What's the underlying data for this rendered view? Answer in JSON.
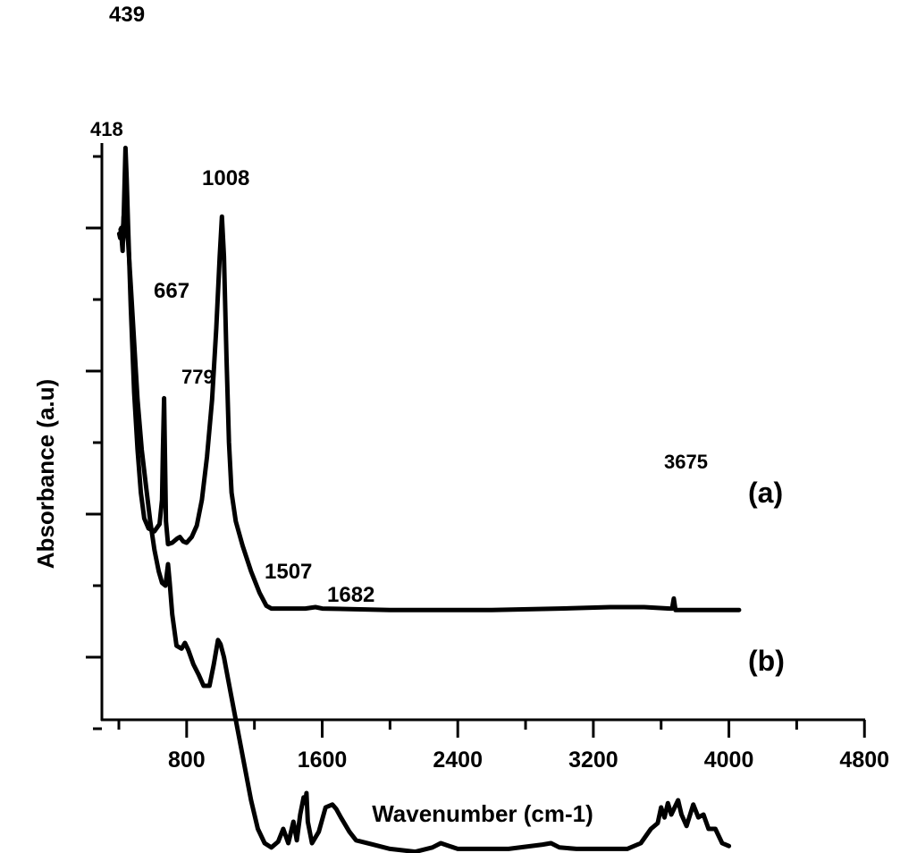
{
  "chart_data": {
    "type": "line",
    "title": "",
    "xlabel": "Wavenumber (cm-1)",
    "ylabel": "Absorbance (a.u)",
    "xlim": [
      300,
      4800
    ],
    "ylim": [
      -0.44,
      3.6
    ],
    "x_ticks": [
      800,
      1600,
      2400,
      3200,
      4000,
      4800
    ],
    "x_minor_ticks": [
      400,
      1200,
      2000,
      2800,
      3600,
      4400
    ],
    "y_ticks_labeled": false,
    "grid": false,
    "legend": "inline labels at right end of curves",
    "series": [
      {
        "name": "(a)",
        "points": [
          [
            410,
            2.99
          ],
          [
            418,
            2.94
          ],
          [
            428,
            3.05
          ],
          [
            439,
            3.56
          ],
          [
            446,
            3.35
          ],
          [
            455,
            3.0
          ],
          [
            470,
            2.45
          ],
          [
            490,
            1.85
          ],
          [
            510,
            1.45
          ],
          [
            530,
            1.15
          ],
          [
            550,
            0.97
          ],
          [
            575,
            0.9
          ],
          [
            610,
            0.88
          ],
          [
            640,
            0.93
          ],
          [
            655,
            1.1
          ],
          [
            660,
            1.45
          ],
          [
            667,
            1.81
          ],
          [
            672,
            1.4
          ],
          [
            678,
            0.95
          ],
          [
            690,
            0.79
          ],
          [
            715,
            0.8
          ],
          [
            745,
            0.83
          ],
          [
            760,
            0.84
          ],
          [
            779,
            0.81
          ],
          [
            800,
            0.8
          ],
          [
            830,
            0.84
          ],
          [
            860,
            0.92
          ],
          [
            890,
            1.1
          ],
          [
            920,
            1.4
          ],
          [
            950,
            1.8
          ],
          [
            975,
            2.3
          ],
          [
            995,
            2.8
          ],
          [
            1008,
            3.08
          ],
          [
            1020,
            2.8
          ],
          [
            1035,
            2.1
          ],
          [
            1050,
            1.5
          ],
          [
            1065,
            1.15
          ],
          [
            1090,
            0.95
          ],
          [
            1130,
            0.78
          ],
          [
            1180,
            0.6
          ],
          [
            1230,
            0.45
          ],
          [
            1270,
            0.36
          ],
          [
            1300,
            0.34
          ],
          [
            1500,
            0.34
          ],
          [
            1560,
            0.35
          ],
          [
            1600,
            0.34
          ],
          [
            2000,
            0.33
          ],
          [
            2600,
            0.33
          ],
          [
            3000,
            0.34
          ],
          [
            3300,
            0.35
          ],
          [
            3500,
            0.35
          ],
          [
            3650,
            0.34
          ],
          [
            3665,
            0.34
          ],
          [
            3675,
            0.41
          ],
          [
            3685,
            0.33
          ],
          [
            3800,
            0.33
          ],
          [
            4060,
            0.33
          ]
        ]
      },
      {
        "name": "(b)",
        "points": [
          [
            402,
            2.96
          ],
          [
            408,
            2.93
          ],
          [
            414,
            3.0
          ],
          [
            418,
            2.9
          ],
          [
            422,
            2.84
          ],
          [
            428,
            3.08
          ],
          [
            434,
            2.97
          ],
          [
            442,
            3.01
          ],
          [
            455,
            2.9
          ],
          [
            470,
            2.6
          ],
          [
            490,
            2.2
          ],
          [
            510,
            1.8
          ],
          [
            535,
            1.45
          ],
          [
            560,
            1.2
          ],
          [
            585,
            0.95
          ],
          [
            610,
            0.75
          ],
          [
            635,
            0.6
          ],
          [
            655,
            0.52
          ],
          [
            675,
            0.5
          ],
          [
            690,
            0.65
          ],
          [
            700,
            0.52
          ],
          [
            715,
            0.3
          ],
          [
            740,
            0.08
          ],
          [
            770,
            0.06
          ],
          [
            790,
            0.1
          ],
          [
            810,
            0.05
          ],
          [
            840,
            -0.05
          ],
          [
            870,
            -0.12
          ],
          [
            900,
            -0.2
          ],
          [
            935,
            -0.2
          ],
          [
            960,
            -0.05
          ],
          [
            985,
            0.12
          ],
          [
            1000,
            0.09
          ],
          [
            1020,
            0.0
          ],
          [
            1060,
            -0.25
          ],
          [
            1100,
            -0.5
          ],
          [
            1140,
            -0.75
          ],
          [
            1180,
            -1.0
          ],
          [
            1220,
            -1.2
          ],
          [
            1260,
            -1.3
          ],
          [
            1300,
            -1.33
          ],
          [
            1340,
            -1.29
          ],
          [
            1370,
            -1.2
          ],
          [
            1400,
            -1.3
          ],
          [
            1430,
            -1.15
          ],
          [
            1450,
            -1.28
          ],
          [
            1470,
            -1.1
          ],
          [
            1490,
            -0.98
          ],
          [
            1500,
            -1.02
          ],
          [
            1507,
            -0.95
          ],
          [
            1515,
            -1.15
          ],
          [
            1540,
            -1.3
          ],
          [
            1580,
            -1.22
          ],
          [
            1620,
            -1.05
          ],
          [
            1660,
            -1.03
          ],
          [
            1682,
            -1.06
          ],
          [
            1710,
            -1.12
          ],
          [
            1760,
            -1.22
          ],
          [
            1800,
            -1.28
          ],
          [
            1900,
            -1.31
          ],
          [
            2000,
            -1.34
          ],
          [
            2150,
            -1.36
          ],
          [
            2250,
            -1.33
          ],
          [
            2300,
            -1.3
          ],
          [
            2350,
            -1.32
          ],
          [
            2400,
            -1.34
          ],
          [
            2700,
            -1.34
          ],
          [
            2900,
            -1.31
          ],
          [
            2950,
            -1.3
          ],
          [
            3000,
            -1.33
          ],
          [
            3100,
            -1.34
          ],
          [
            3400,
            -1.34
          ],
          [
            3480,
            -1.3
          ],
          [
            3540,
            -1.2
          ],
          [
            3580,
            -1.16
          ],
          [
            3600,
            -1.05
          ],
          [
            3620,
            -1.12
          ],
          [
            3640,
            -1.02
          ],
          [
            3660,
            -1.1
          ],
          [
            3700,
            -1.0
          ],
          [
            3720,
            -1.1
          ],
          [
            3750,
            -1.18
          ],
          [
            3790,
            -1.03
          ],
          [
            3820,
            -1.12
          ],
          [
            3850,
            -1.1
          ],
          [
            3880,
            -1.2
          ],
          [
            3920,
            -1.2
          ],
          [
            3960,
            -1.3
          ],
          [
            4000,
            -1.32
          ]
        ]
      }
    ],
    "annotations": [
      {
        "text": "439",
        "x": 439,
        "series": "(a)"
      },
      {
        "text": "418",
        "x": 418,
        "series": "(b)"
      },
      {
        "text": "1008",
        "x": 1008,
        "series": "(a)"
      },
      {
        "text": "667",
        "x": 667,
        "series": "(a)"
      },
      {
        "text": "779",
        "x": 779,
        "series": "(a)"
      },
      {
        "text": "3675",
        "x": 3675,
        "series": "(a)"
      },
      {
        "text": "1507",
        "x": 1507,
        "series": "(b)"
      },
      {
        "text": "1682",
        "x": 1682,
        "series": "(b)"
      }
    ],
    "line_color": "#000000"
  },
  "labels": {
    "x_axis_title": "Wavenumber (cm-1)",
    "y_axis_title": "Absorbance (a.u)",
    "series_a": "(a)",
    "series_b": "(b)",
    "x_tick_labels": [
      "800",
      "1600",
      "2400",
      "3200",
      "4000",
      "4800"
    ],
    "peak_439": "439",
    "peak_418": "418",
    "peak_1008": "1008",
    "peak_667": "667",
    "peak_779": "779",
    "peak_3675": "3675",
    "peak_1507": "1507",
    "peak_1682": "1682"
  }
}
